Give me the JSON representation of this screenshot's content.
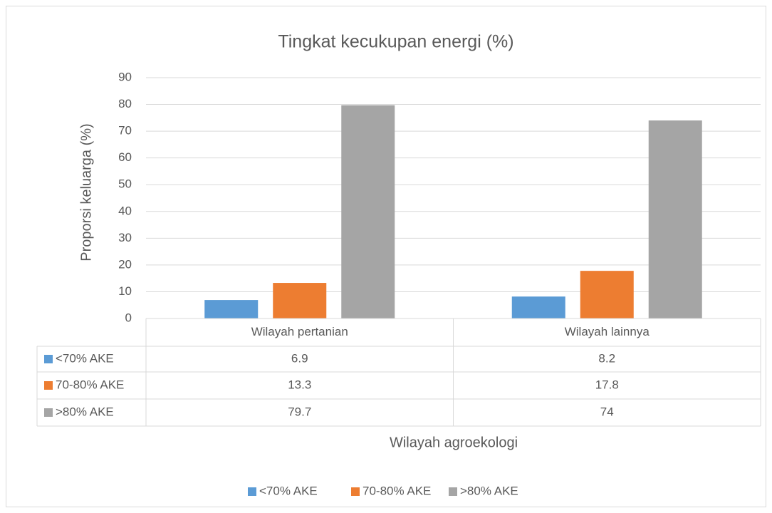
{
  "chart_data": {
    "type": "bar",
    "title": "Tingkat kecukupan energi (%)",
    "y_label": "Proporsi keluarga (%)",
    "x_label": "Wilayah agroekologi",
    "categories": [
      "Wilayah pertanian",
      "Wilayah lainnya"
    ],
    "series": [
      {
        "name": "<70% AKE",
        "color": "#5b9bd5",
        "values": [
          6.9,
          8.2
        ]
      },
      {
        "name": "70-80% AKE",
        "color": "#ed7d31",
        "values": [
          13.3,
          17.8
        ]
      },
      {
        "name": ">80% AKE",
        "color": "#a5a5a5",
        "values": [
          79.7,
          74
        ]
      }
    ],
    "ylim": [
      0,
      90
    ],
    "yticks": [
      0,
      10,
      20,
      30,
      40,
      50,
      60,
      70,
      80,
      90
    ],
    "grid": true,
    "legend": "bottom",
    "data_table": true
  }
}
